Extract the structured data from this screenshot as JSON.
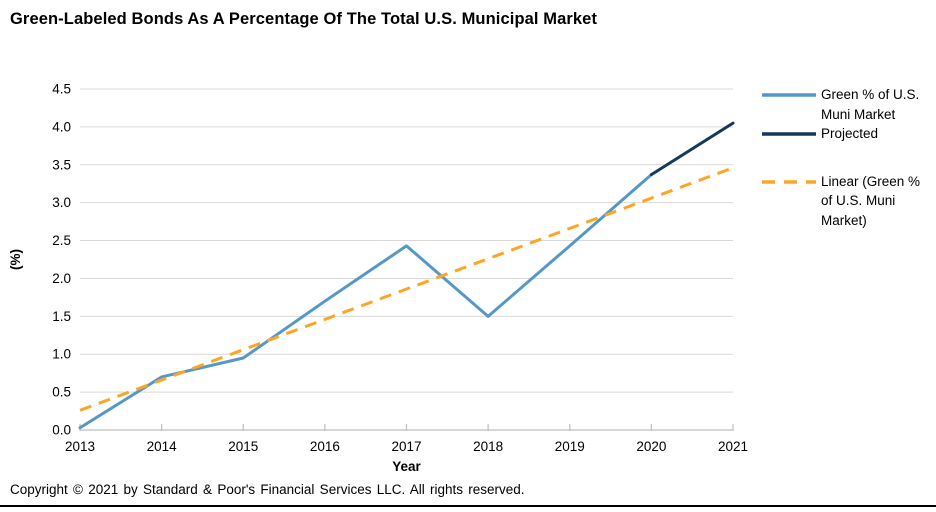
{
  "chart_data": {
    "type": "line",
    "title": "Green-Labeled Bonds As A Percentage Of The Total U.S. Municipal Market",
    "xlabel": "Year",
    "ylabel": "(%)",
    "xlim": [
      2013,
      2021
    ],
    "ylim": [
      0,
      4.5
    ],
    "ytick_step": 0.5,
    "xticks": [
      2013,
      2014,
      2015,
      2016,
      2017,
      2018,
      2019,
      2020,
      2021
    ],
    "grid": true,
    "legend_position": "right",
    "series": [
      {
        "name": "Green % of U.S. Muni Market",
        "color": "#5598C8",
        "style": "solid",
        "x": [
          2013,
          2014,
          2015,
          2016,
          2017,
          2018,
          2019,
          2020
        ],
        "values": [
          0.03,
          0.7,
          0.95,
          1.7,
          2.43,
          1.5,
          2.43,
          3.37
        ]
      },
      {
        "name": "Projected",
        "color": "#17375E",
        "style": "solid",
        "x": [
          2020,
          2021
        ],
        "values": [
          3.37,
          4.05
        ]
      },
      {
        "name": "Linear (Green % of U.S. Muni Market)",
        "color": "#FFA524",
        "style": "dashed",
        "x": [
          2013,
          2021
        ],
        "values": [
          0.26,
          3.46
        ]
      }
    ]
  },
  "footer": {
    "copyright": "Copyright © 2021 by Standard & Poor's Financial Services LLC. All rights reserved."
  },
  "colors": {
    "grid": "#D9D9D9",
    "axis": "#BFBFBF",
    "text": "#000000",
    "background": "#FFFFFF"
  }
}
